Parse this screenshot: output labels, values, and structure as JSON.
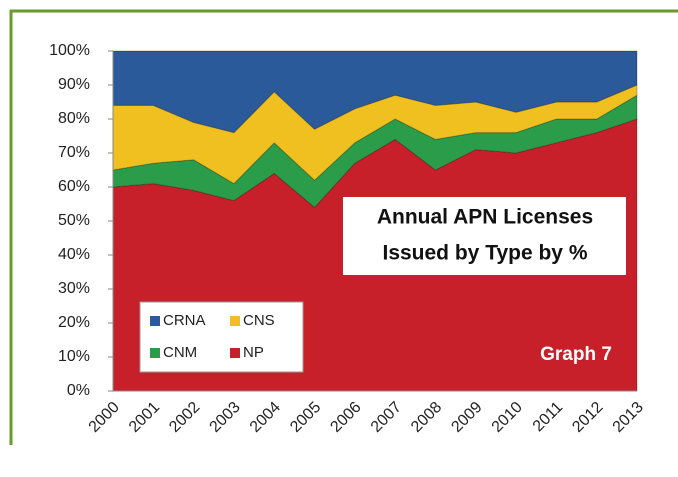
{
  "chart_data": {
    "type": "stacked_area",
    "title": [
      "Annual APN Licenses",
      "Issued by Type by %"
    ],
    "annotation": "Graph 7",
    "categories": [
      "2000",
      "2001",
      "2002",
      "2003",
      "2004",
      "2005",
      "2006",
      "2007",
      "2008",
      "2009",
      "2010",
      "2011",
      "2012",
      "2013"
    ],
    "series": [
      {
        "name": "NP",
        "color": "#c8202a",
        "values": [
          60,
          61,
          59,
          56,
          64,
          54,
          67,
          74,
          65,
          71,
          70,
          73,
          76,
          80
        ]
      },
      {
        "name": "CNM",
        "color": "#2a9c4a",
        "values": [
          5,
          6,
          9,
          5,
          9,
          8,
          6,
          6,
          9,
          5,
          6,
          7,
          4,
          7
        ]
      },
      {
        "name": "CNS",
        "color": "#f0c020",
        "values": [
          19,
          17,
          11,
          15,
          15,
          15,
          10,
          7,
          10,
          9,
          6,
          5,
          5,
          3
        ]
      },
      {
        "name": "CRNA",
        "color": "#2a5a9a",
        "values": [
          16,
          16,
          21,
          24,
          12,
          23,
          17,
          13,
          16,
          15,
          18,
          15,
          15,
          10
        ]
      }
    ],
    "ylim": [
      0,
      100
    ],
    "yticks": [
      {
        "value": 0,
        "label": "0%"
      },
      {
        "value": 10,
        "label": "10%"
      },
      {
        "value": 20,
        "label": "20%"
      },
      {
        "value": 30,
        "label": "30%"
      },
      {
        "value": 40,
        "label": "40%"
      },
      {
        "value": 50,
        "label": "50%"
      },
      {
        "value": 60,
        "label": "60%"
      },
      {
        "value": 70,
        "label": "70%"
      },
      {
        "value": 80,
        "label": "80%"
      },
      {
        "value": 90,
        "label": "90%"
      },
      {
        "value": 100,
        "label": "100%"
      }
    ]
  }
}
